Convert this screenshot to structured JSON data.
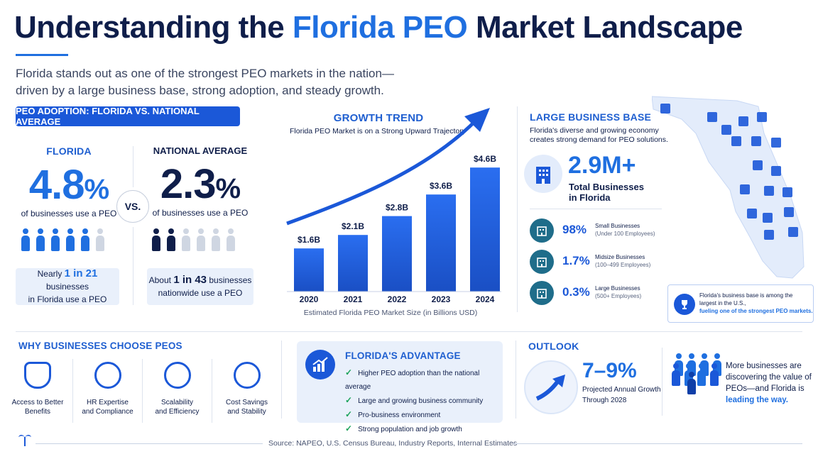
{
  "title": {
    "part1": "Understanding the ",
    "highlight": "Florida PEO",
    "part2": " Market Landscape"
  },
  "intro": {
    "line1": "Florida stands out as one of the strongest PEO markets in the nation—",
    "line2": "driven by a large business base, strong adoption, and steady growth."
  },
  "adoption": {
    "heading": "PEO ADOPTION: FLORIDA VS. NATIONAL AVERAGE",
    "florida": {
      "label": "FLORIDA",
      "value": "4.8",
      "unit": "%",
      "sub": "of businesses use a PEO",
      "note_pre": "Nearly ",
      "note_big": "1 in 21",
      "note_post": " businesses",
      "note_line2": "in Florida use a PEO"
    },
    "vs": "VS.",
    "national": {
      "label": "NATIONAL AVERAGE",
      "value": "2.3",
      "unit": "%",
      "sub": "of businesses use a PEO",
      "note_pre": "About ",
      "note_big": "1 in 43",
      "note_post": " businesses",
      "note_line2": "nationwide use a PEO"
    }
  },
  "growth": {
    "heading": "GROWTH TREND",
    "subtitle": "Florida PEO Market is on a Strong Upward Trajectory",
    "caption": "Estimated Florida PEO Market Size (in Billions USD)"
  },
  "chart_data": {
    "type": "bar",
    "categories": [
      "2020",
      "2021",
      "2022",
      "2023",
      "2024"
    ],
    "values": [
      1.6,
      2.1,
      2.8,
      3.6,
      4.6
    ],
    "labels": [
      "$1.6B",
      "$2.1B",
      "$2.8B",
      "$3.6B",
      "$4.6B"
    ],
    "title": "GROWTH TREND",
    "subtitle": "Florida PEO Market is on a Strong Upward Trajectory",
    "xlabel": "Estimated Florida PEO Market Size (in Billions USD)",
    "ylabel": "",
    "ylim": [
      0,
      5
    ],
    "grid": false
  },
  "base": {
    "heading": "LARGE BUSINESS BASE",
    "desc1": "Florida's diverse and growing economy",
    "desc2": "creates strong demand for PEO solutions.",
    "total_value": "2.9M+",
    "total_label1": "Total Businesses",
    "total_label2": "in Florida",
    "segments": [
      {
        "pct": "98%",
        "name": "Small Businesses",
        "sub": "(Under 100 Employees)",
        "icon": "store-icon"
      },
      {
        "pct": "1.7%",
        "name": "Midsize Businesses",
        "sub": "(100–499 Employees)",
        "icon": "office-building-icon"
      },
      {
        "pct": "0.3%",
        "name": "Large Businesses",
        "sub": "(500+ Employees)",
        "icon": "tower-building-icon"
      }
    ],
    "callout1": "Florida's business base is among the",
    "callout2": "largest in the U.S.,",
    "callout3": "fueling one of the strongest PEO markets."
  },
  "why": {
    "heading": "WHY BUSINESSES CHOOSE PEOS",
    "items": [
      {
        "line1": "Access to Better",
        "line2": "Benefits",
        "icon": "shield-people-icon"
      },
      {
        "line1": "HR Expertise",
        "line2": "and Compliance",
        "icon": "gear-dollar-icon"
      },
      {
        "line1": "Scalability",
        "line2": "and Efficiency",
        "icon": "growth-bars-icon"
      },
      {
        "line1": "Cost Savings",
        "line2": "and Stability",
        "icon": "piggy-bank-icon"
      }
    ]
  },
  "advantage": {
    "heading": "FLORIDA'S ADVANTAGE",
    "items": [
      "Higher PEO adoption than the national average",
      "Large and growing business community",
      "Pro-business environment",
      "Strong population and job growth"
    ]
  },
  "outlook": {
    "heading": "OUTLOOK",
    "value": "7–9%",
    "label1": "Projected Annual Growth",
    "label2": "Through 2028",
    "msg1": "More businesses are",
    "msg2": "discovering the value of",
    "msg3": "PEOs—and Florida is",
    "msg_strong": "leading the way."
  },
  "source": "Source: NAPEO, U.S. Census Bureau, Industry Reports, Internal Estimates",
  "colors": {
    "navy": "#0f1e4a",
    "accent": "#1f6fe0",
    "bar": "#2a6ef0",
    "person_active_fl": "#1f6fe0",
    "person_active_nat": "#0f1e4a",
    "person_inactive": "#cfd6e2",
    "green": "#1aa35a"
  }
}
